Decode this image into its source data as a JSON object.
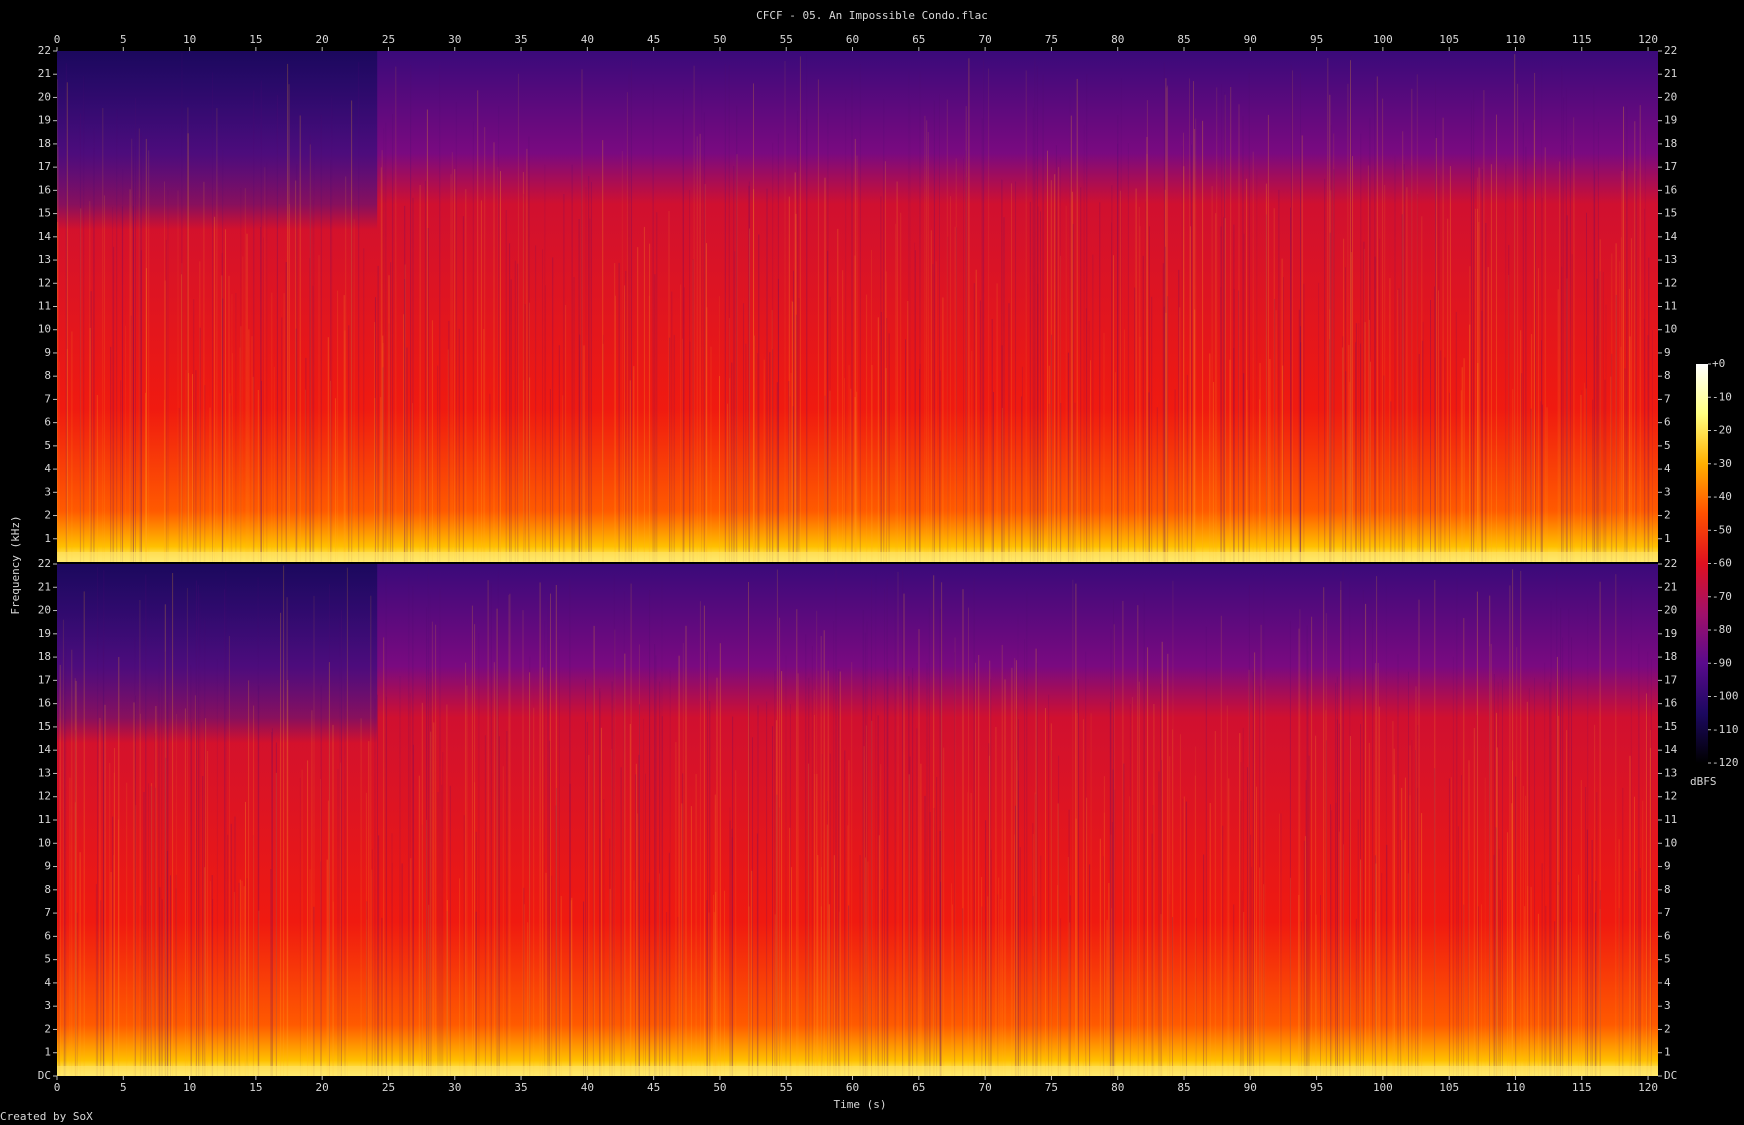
{
  "chart_data": {
    "type": "spectrogram",
    "title": "CFCF - 05. An Impossible Condo.flac",
    "xlabel": "Time (s)",
    "ylabel": "Frequency (kHz)",
    "footer": "Created by SoX",
    "xlim": [
      0,
      120.75
    ],
    "xticks": [
      0,
      5,
      10,
      15,
      20,
      25,
      30,
      35,
      40,
      45,
      50,
      55,
      60,
      65,
      70,
      75,
      80,
      85,
      90,
      95,
      100,
      105,
      110,
      115,
      120
    ],
    "ylim": [
      0,
      22
    ],
    "panels": [
      {
        "yticks": [
          1,
          2,
          3,
          4,
          5,
          6,
          7,
          8,
          9,
          10,
          11,
          12,
          13,
          14,
          15,
          16,
          17,
          18,
          19,
          20,
          21,
          22
        ]
      },
      {
        "yticks": [
          {
            "value": 0,
            "label": "DC"
          },
          1,
          2,
          3,
          4,
          5,
          6,
          7,
          8,
          9,
          10,
          11,
          12,
          13,
          14,
          15,
          16,
          17,
          18,
          19,
          20,
          21,
          22
        ]
      }
    ],
    "colorbar": {
      "label": "dBFS",
      "lim": [
        -120,
        0
      ],
      "ticks": [
        {
          "value": 0,
          "label": "+0"
        },
        -10,
        -20,
        -30,
        -40,
        -50,
        -60,
        -70,
        -80,
        -90,
        -100,
        -110,
        -120
      ],
      "colormap": [
        "#000000",
        "#1c0860",
        "#5a0a8c",
        "#a0106a",
        "#e01020",
        "#ff5000",
        "#ffb000",
        "#ffff80",
        "#ffffff"
      ]
    }
  }
}
